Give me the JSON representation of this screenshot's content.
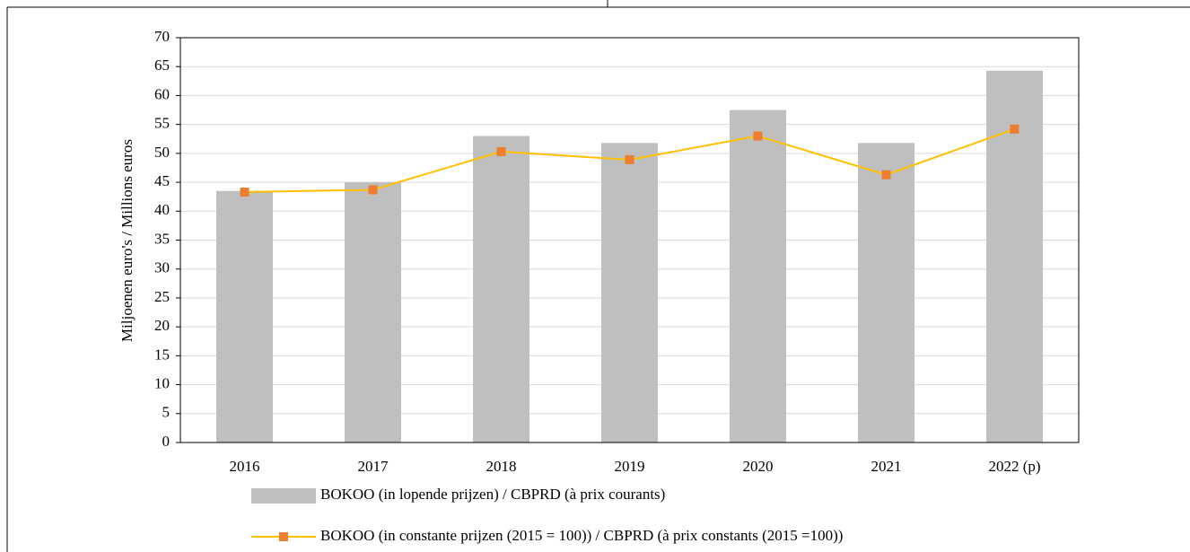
{
  "chart_data": {
    "type": "bar",
    "y_label": "Miljoenen euro's / Millions euros",
    "categories": [
      "2016",
      "2017",
      "2018",
      "2019",
      "2020",
      "2021",
      "2022 (p)"
    ],
    "series": [
      {
        "name": "BOKOO (in lopende prijzen) / CBPRD (à prix courants)",
        "type": "bar",
        "color": "#bfbfbf",
        "values": [
          43.5,
          45,
          53,
          51.8,
          57.5,
          51.8,
          64.3
        ]
      },
      {
        "name": "BOKOO (in constante prijzen (2015 = 100)) / CBPRD (à prix constants (2015 =100))",
        "type": "line",
        "color": "#ffc000",
        "marker_color": "#ed7d31",
        "values": [
          43.3,
          43.7,
          50.3,
          48.9,
          53.0,
          46.3,
          54.2
        ]
      }
    ],
    "ylim": [
      0,
      70
    ],
    "yticks": [
      0,
      5,
      10,
      15,
      20,
      25,
      30,
      35,
      40,
      45,
      50,
      55,
      60,
      65,
      70
    ],
    "grid": true,
    "legend": "bottom"
  }
}
